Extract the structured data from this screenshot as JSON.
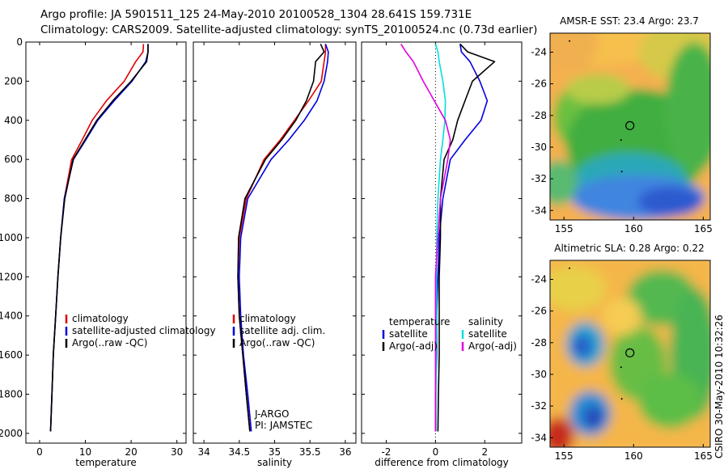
{
  "header": {
    "line1": "Argo profile: JA 5901511_125 24-May-2010 20100528_1304 28.641S 159.731E",
    "line2": "Climatology: CARS2009. Satellite-adjusted climatology: synTS_20100524.nc (0.73d earlier)"
  },
  "side_label": "CSIRO 30-May-2010 10:32:26",
  "chart_data": [
    {
      "type": "line",
      "id": "temperature",
      "xlabel": "temperature",
      "ylim": [
        2050,
        0
      ],
      "xlim": [
        -3,
        32
      ],
      "xticks": [
        0,
        10,
        20,
        30
      ],
      "yticks": [
        0,
        200,
        400,
        600,
        800,
        1000,
        1200,
        1400,
        1600,
        1800,
        2000
      ],
      "legend": {
        "placement": "bottom-right",
        "items": [
          "climatology",
          "satellite-adjusted climatology",
          "Argo(..raw -QC)"
        ]
      },
      "series": [
        {
          "name": "climatology",
          "color": "#e00000",
          "x": [
            22.7,
            22.6,
            21.0,
            18.5,
            14.6,
            11.5,
            9.3,
            7.0,
            5.4,
            4.6,
            4.0,
            3.5,
            3.0,
            2.7,
            2.4
          ],
          "y": [
            10,
            50,
            100,
            200,
            300,
            400,
            500,
            600,
            800,
            1000,
            1200,
            1400,
            1600,
            1800,
            1990
          ]
        },
        {
          "name": "satellite-adjusted climatology",
          "color": "#0000e0",
          "x": [
            23.7,
            23.7,
            23.2,
            20.2,
            16.3,
            12.7,
            10.1,
            7.4,
            5.4,
            4.6,
            4.0,
            3.5,
            3.0,
            2.7,
            2.4
          ],
          "y": [
            10,
            50,
            100,
            200,
            300,
            400,
            500,
            600,
            800,
            1000,
            1200,
            1400,
            1600,
            1800,
            1990
          ]
        },
        {
          "name": "Argo(..raw -QC)",
          "color": "#000000",
          "x": [
            23.7,
            23.7,
            23.4,
            20.0,
            16.0,
            12.5,
            9.9,
            7.3,
            5.5,
            4.6,
            4.0,
            3.5,
            3.0,
            2.7,
            2.4
          ],
          "y": [
            10,
            50,
            100,
            200,
            300,
            400,
            500,
            600,
            800,
            1000,
            1200,
            1400,
            1600,
            1800,
            1990
          ]
        }
      ]
    },
    {
      "type": "line",
      "id": "salinity",
      "xlabel": "salinity",
      "ylim": [
        2050,
        0
      ],
      "xlim": [
        33.85,
        36.15
      ],
      "xticks": [
        34,
        34.5,
        35,
        35.5,
        36
      ],
      "legend": {
        "placement": "bottom-right",
        "items": [
          "climatology",
          "satellite adj. clim.",
          "Argo(..raw -QC)"
        ]
      },
      "annotation": [
        "J-ARGO",
        "PI: JAMSTEC"
      ],
      "series": [
        {
          "name": "climatology",
          "color": "#e00000",
          "x": [
            35.72,
            35.72,
            35.7,
            35.66,
            35.48,
            35.28,
            35.08,
            34.85,
            34.6,
            34.5,
            34.48,
            34.5,
            34.55,
            34.6,
            34.65
          ],
          "y": [
            10,
            50,
            100,
            200,
            300,
            400,
            500,
            600,
            800,
            1000,
            1200,
            1400,
            1600,
            1800,
            1990
          ]
        },
        {
          "name": "satellite adj. clim.",
          "color": "#0000e0",
          "x": [
            35.72,
            35.76,
            35.75,
            35.7,
            35.6,
            35.42,
            35.2,
            34.95,
            34.62,
            34.52,
            34.5,
            34.52,
            34.56,
            34.62,
            34.67
          ],
          "y": [
            10,
            50,
            100,
            200,
            300,
            400,
            500,
            600,
            800,
            1000,
            1200,
            1400,
            1600,
            1800,
            1990
          ]
        },
        {
          "name": "Argo(..raw -QC)",
          "color": "#000000",
          "x": [
            35.65,
            35.7,
            35.58,
            35.55,
            35.45,
            35.3,
            35.1,
            34.87,
            34.58,
            34.49,
            34.48,
            34.5,
            34.55,
            34.6,
            34.65
          ],
          "y": [
            10,
            50,
            100,
            200,
            300,
            400,
            500,
            600,
            800,
            1000,
            1200,
            1400,
            1600,
            1800,
            1990
          ]
        }
      ]
    },
    {
      "type": "line",
      "id": "difference",
      "xlabel": "difference from climatology",
      "ylim": [
        2050,
        0
      ],
      "xlim": [
        -3.0,
        3.5
      ],
      "xticks": [
        -2,
        0,
        2
      ],
      "legend": {
        "placement": "bottom-right",
        "groups": [
          {
            "title": "temperature",
            "items": [
              "satellite",
              "Argo(-adj)"
            ]
          },
          {
            "title": "salinity",
            "items": [
              "satellite",
              "Argo(-adj)"
            ]
          }
        ]
      },
      "series": [
        {
          "name": "temperature satellite",
          "color": "#0000e0",
          "x": [
            1.0,
            1.05,
            1.4,
            1.8,
            2.1,
            1.85,
            1.2,
            0.6,
            0.3,
            0.15,
            0.1,
            0.05,
            0.05,
            0.0,
            0.0
          ],
          "y": [
            10,
            50,
            100,
            200,
            300,
            400,
            500,
            600,
            800,
            1000,
            1200,
            1400,
            1600,
            1800,
            1990
          ]
        },
        {
          "name": "temperature Argo(-adj)",
          "color": "#000000",
          "x": [
            1.0,
            1.3,
            2.4,
            1.5,
            1.2,
            0.9,
            0.7,
            0.35,
            0.2,
            0.2,
            0.15,
            0.15,
            0.15,
            0.12,
            0.1
          ],
          "y": [
            10,
            50,
            100,
            200,
            300,
            400,
            500,
            600,
            800,
            1000,
            1200,
            1400,
            1600,
            1800,
            1990
          ]
        },
        {
          "name": "salinity satellite",
          "color": "#00e0e0",
          "x": [
            0.0,
            0.1,
            0.15,
            0.3,
            0.4,
            0.38,
            0.3,
            0.2,
            0.1,
            0.05,
            0.04,
            0.05,
            0.03,
            0.02,
            0.02
          ],
          "y": [
            10,
            50,
            100,
            200,
            300,
            400,
            500,
            600,
            800,
            1000,
            1200,
            1400,
            1600,
            1800,
            1990
          ]
        },
        {
          "name": "salinity Argo(-adj)",
          "color": "#e000e0",
          "x": [
            -1.4,
            -1.2,
            -0.9,
            -0.5,
            -0.05,
            0.4,
            0.6,
            0.5,
            0.2,
            0.1,
            0.0,
            0.0,
            0.0,
            0.0,
            0.0
          ],
          "y": [
            10,
            50,
            100,
            200,
            300,
            400,
            500,
            600,
            800,
            1000,
            1200,
            1400,
            1600,
            1800,
            1990
          ]
        }
      ]
    },
    {
      "type": "heatmap",
      "id": "sst",
      "title": "AMSR-E SST: 23.4 Argo: 23.7",
      "xlim": [
        154,
        165.5
      ],
      "ylim": [
        -34.6,
        -22.8
      ],
      "xticks": [
        155,
        160,
        165
      ],
      "yticks": [
        -24,
        -26,
        -28,
        -30,
        -32,
        -34
      ],
      "argo_position": {
        "lon": 159.731,
        "lat": -28.641
      }
    },
    {
      "type": "heatmap",
      "id": "sla",
      "title": "Altimetric SLA: 0.28 Argo: 0.22",
      "xlim": [
        154,
        165.5
      ],
      "ylim": [
        -34.6,
        -22.8
      ],
      "xticks": [
        155,
        160,
        165
      ],
      "yticks": [
        -24,
        -26,
        -28,
        -30,
        -32,
        -34
      ],
      "argo_position": {
        "lon": 159.731,
        "lat": -28.641
      }
    }
  ]
}
